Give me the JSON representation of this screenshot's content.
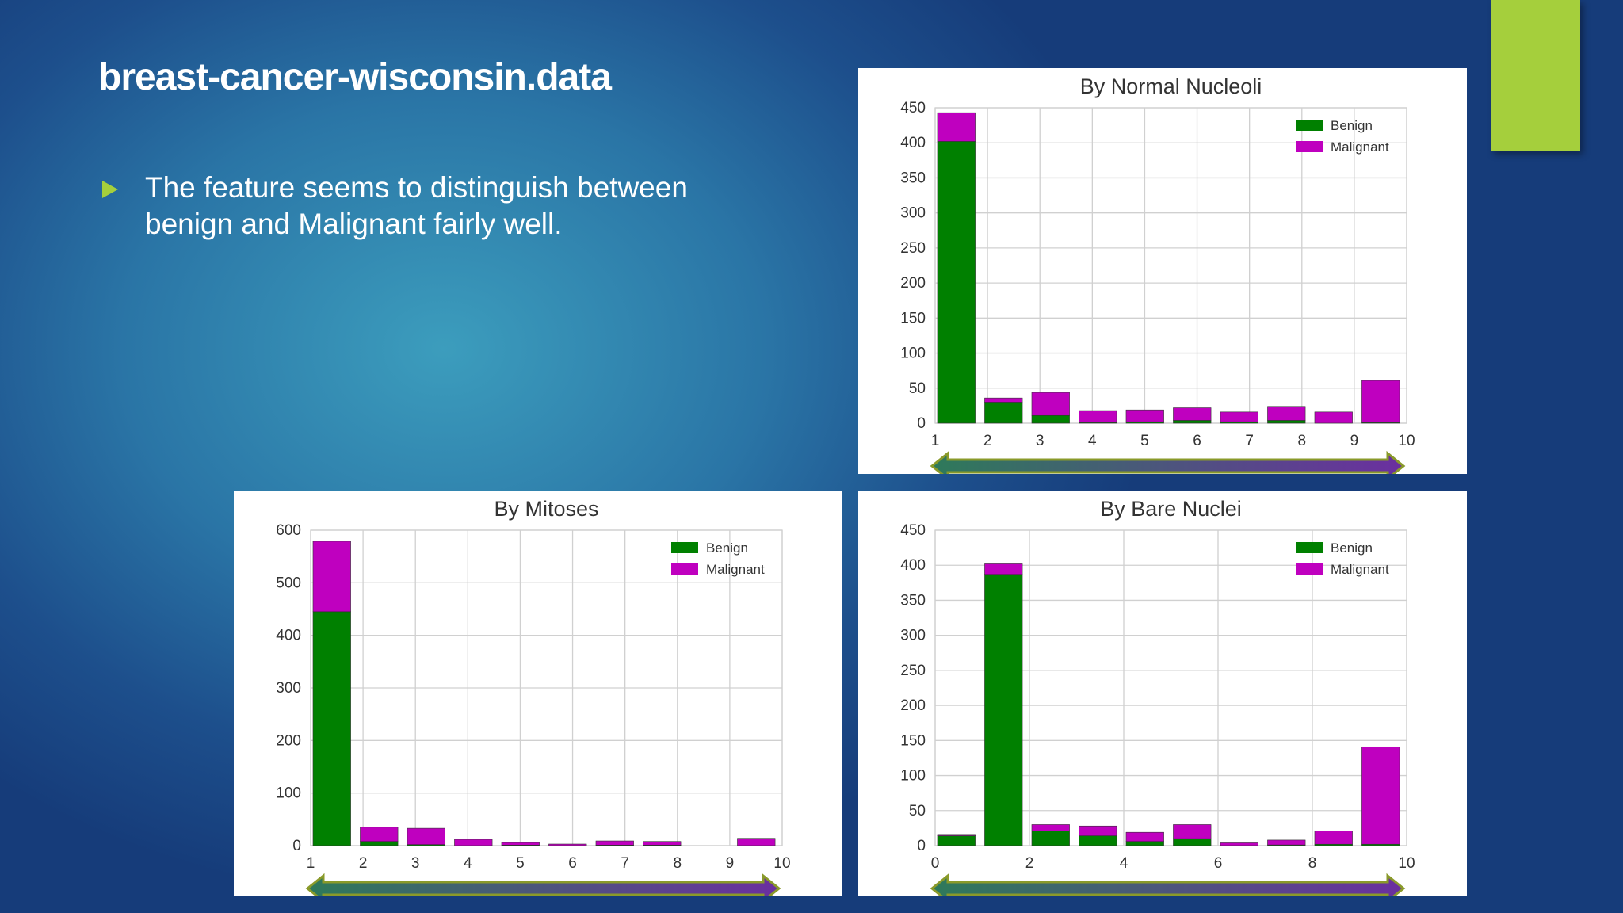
{
  "title": "breast-cancer-wisconsin.data",
  "bullets": [
    "The feature seems to distinguish between benign and Malignant fairly well."
  ],
  "chart_data": [
    {
      "type": "histogram",
      "title": "By Normal Nucleoli",
      "bins": [
        1,
        1.9,
        2.8,
        3.7,
        4.6,
        5.5,
        6.4,
        7.3,
        8.2,
        9.1,
        10
      ],
      "series": [
        {
          "name": "Benign",
          "color": "#008000",
          "values": [
            402,
            30,
            11,
            1,
            2,
            4,
            2,
            4,
            0,
            1
          ]
        },
        {
          "name": "Malignant",
          "color": "#bf00bf",
          "values": [
            41,
            6,
            33,
            17,
            17,
            18,
            14,
            20,
            16,
            60
          ]
        }
      ],
      "xlim": [
        1,
        10
      ],
      "xticks": [
        1,
        2,
        3,
        4,
        5,
        6,
        7,
        8,
        9,
        10
      ],
      "ylim": [
        0,
        450
      ],
      "yticks": [
        0,
        50,
        100,
        150,
        200,
        250,
        300,
        350,
        400,
        450
      ],
      "grid": true,
      "legend": "upper right",
      "stacked": true
    },
    {
      "type": "histogram",
      "title": "By Mitoses",
      "bins": [
        1,
        1.9,
        2.8,
        3.7,
        4.6,
        5.5,
        6.4,
        7.3,
        8.2,
        9.1,
        10
      ],
      "series": [
        {
          "name": "Benign",
          "color": "#008000",
          "values": [
            445,
            8,
            2,
            0,
            1,
            0,
            1,
            1,
            0,
            0
          ]
        },
        {
          "name": "Malignant",
          "color": "#bf00bf",
          "values": [
            134,
            27,
            31,
            12,
            5,
            3,
            8,
            7,
            0,
            14
          ]
        }
      ],
      "xlim": [
        1,
        10
      ],
      "xticks": [
        1,
        2,
        3,
        4,
        5,
        6,
        7,
        8,
        9,
        10
      ],
      "ylim": [
        0,
        600
      ],
      "yticks": [
        0,
        100,
        200,
        300,
        400,
        500,
        600
      ],
      "grid": true,
      "legend": "upper right",
      "stacked": true
    },
    {
      "type": "histogram",
      "title": "By Bare Nuclei",
      "bins": [
        0,
        1,
        2,
        3,
        4,
        5,
        6,
        7,
        8,
        9,
        10
      ],
      "series": [
        {
          "name": "Benign",
          "color": "#008000",
          "values": [
            14,
            387,
            21,
            14,
            6,
            10,
            0,
            1,
            2,
            2
          ]
        },
        {
          "name": "Malignant",
          "color": "#bf00bf",
          "values": [
            2,
            15,
            9,
            14,
            13,
            20,
            4,
            7,
            19,
            139
          ]
        }
      ],
      "xlim": [
        0,
        10
      ],
      "xticks": [
        0,
        2,
        4,
        6,
        8,
        10
      ],
      "ylim": [
        0,
        450
      ],
      "yticks": [
        0,
        50,
        100,
        150,
        200,
        250,
        300,
        350,
        400,
        450
      ],
      "grid": true,
      "legend": "upper right",
      "stacked": true
    }
  ]
}
